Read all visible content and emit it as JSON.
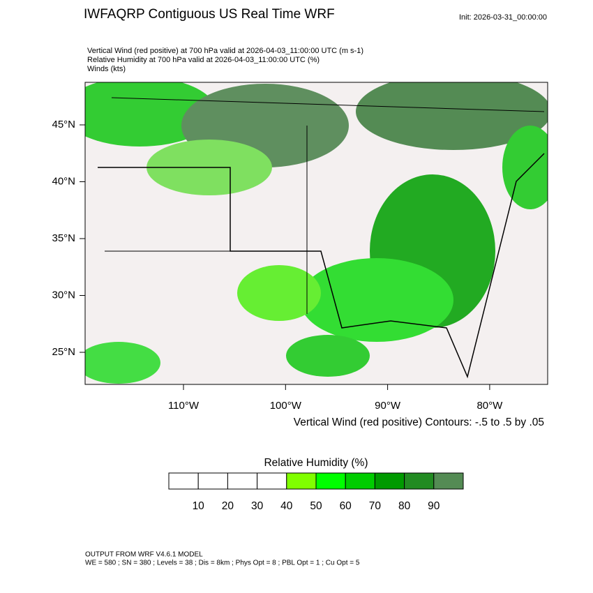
{
  "header": {
    "title": "IWFAQRP Contiguous US Real Time WRF",
    "init": "Init: 2026-03-31_00:00:00"
  },
  "description": [
    "Vertical Wind (red positive) at 700 hPa valid at 2026-04-03_11:00:00 UTC   (m s-1)",
    "Relative Humidity at 700 hPa valid at 2026-04-03_11:00:00 UTC   (%)",
    "Winds   (kts)"
  ],
  "map": {
    "lat_ticks": [
      {
        "value": 45,
        "label": "45°N"
      },
      {
        "value": 40,
        "label": "40°N"
      },
      {
        "value": 35,
        "label": "35°N"
      },
      {
        "value": 30,
        "label": "30°N"
      },
      {
        "value": 25,
        "label": "25°N"
      }
    ],
    "lon_ticks": [
      {
        "value": -110,
        "label": "110°W"
      },
      {
        "value": -100,
        "label": "100°W"
      },
      {
        "value": -90,
        "label": "90°W"
      },
      {
        "value": -80,
        "label": "80°W"
      }
    ],
    "contour_note": "Vertical Wind (red positive) Contours: -.5 to .5 by .05"
  },
  "colorbar": {
    "title": "Relative Humidity  (%)",
    "levels": [
      10,
      20,
      30,
      40,
      50,
      60,
      70,
      80,
      90
    ],
    "colors": [
      "#ffffff",
      "#ffffff",
      "#ffffff",
      "#ffffff",
      "#80ff00",
      "#00ff00",
      "#00cd00",
      "#009a00",
      "#228b22",
      "#548b54"
    ]
  },
  "footer": [
    "OUTPUT FROM WRF V4.6.1 MODEL",
    "WE = 580 ; SN = 380 ; Levels = 38 ; Dis = 8km ; Phys Opt = 8 ; PBL Opt = 1 ; Cu Opt = 5"
  ]
}
